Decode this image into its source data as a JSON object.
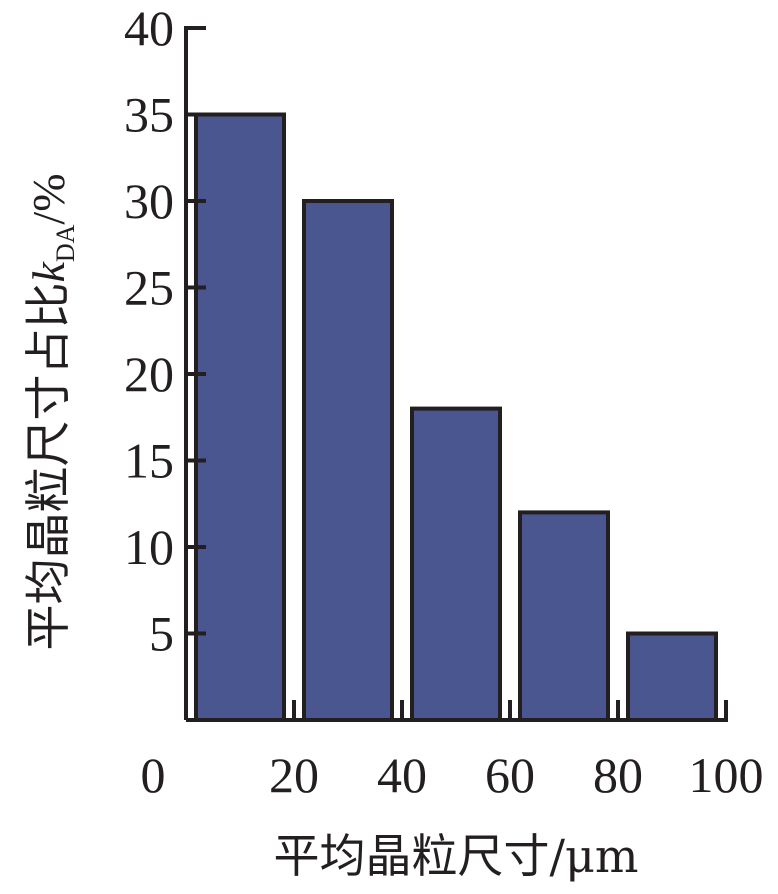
{
  "chart_data": {
    "type": "bar",
    "title": "",
    "xlabel": "平均晶粒尺寸/μm",
    "ylabel": "平均晶粒尺寸占比kDA/%",
    "ylabel_parts": {
      "main": "平均晶粒尺寸占比",
      "symbol": "k",
      "subscript": "DA",
      "unit": "/%"
    },
    "bin_edges": [
      0,
      20,
      40,
      60,
      80,
      100
    ],
    "x_tick_labels": [
      "0",
      "20",
      "40",
      "60",
      "80",
      "100"
    ],
    "values": [
      35,
      30,
      18,
      12,
      5
    ],
    "xlim": [
      0,
      100
    ],
    "ylim": [
      0,
      40
    ],
    "y_tick_values": [
      5,
      10,
      15,
      20,
      25,
      30,
      35,
      40
    ],
    "y_tick_labels": [
      "5",
      "10",
      "15",
      "20",
      "25",
      "30",
      "35",
      "40"
    ],
    "grid": false,
    "legend": "none",
    "colors": {
      "bar_fill": "#4a5690",
      "bar_edge": "#231f20",
      "axis": "#231f20",
      "text": "#231f20"
    }
  }
}
